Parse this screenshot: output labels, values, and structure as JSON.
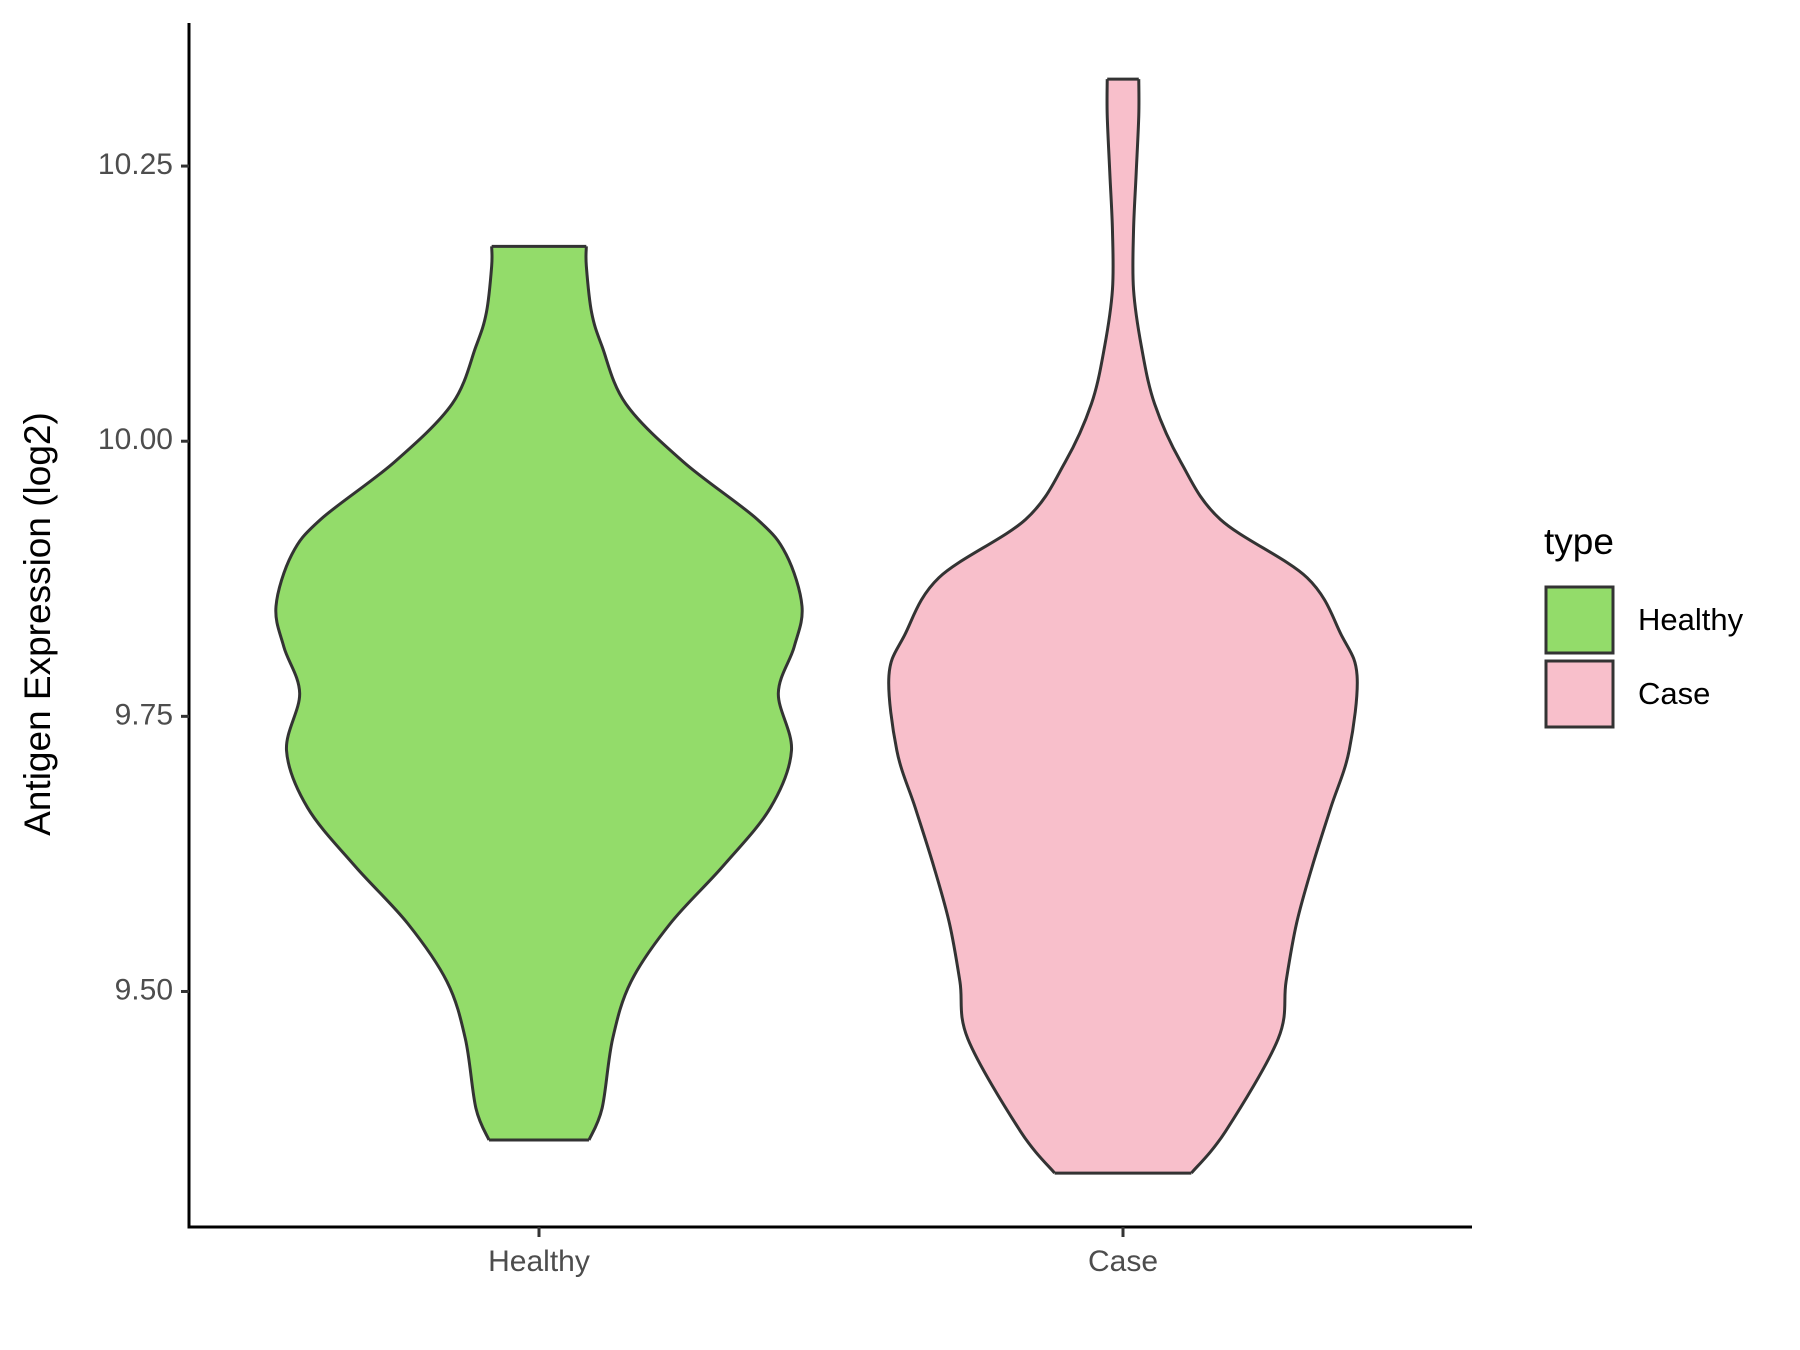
{
  "chart_data": {
    "type": "violin",
    "y_label": "Antigen Expression (log2)",
    "legend_title": "type",
    "categories": [
      "Healthy",
      "Case"
    ],
    "ylim": [
      9.286,
      10.38
    ],
    "yticks": [
      {
        "value": 9.5,
        "label": "9.50"
      },
      {
        "value": 9.75,
        "label": "9.75"
      },
      {
        "value": 10,
        "label": "10.00"
      },
      {
        "value": 10.25,
        "label": "10.25"
      }
    ],
    "series": [
      {
        "name": "Healthy",
        "color": "#93dc6a",
        "y": [
          9.365,
          9.394,
          9.457,
          9.509,
          9.562,
          9.614,
          9.667,
          9.719,
          9.771,
          9.813,
          9.85,
          9.897,
          9.929,
          9.981,
          10.034,
          10.086,
          10.117,
          10.159,
          10.177
        ],
        "density": [
          0.19,
          0.24,
          0.28,
          0.35,
          0.5,
          0.7,
          0.88,
          0.96,
          0.91,
          0.97,
          1.0,
          0.94,
          0.83,
          0.55,
          0.33,
          0.24,
          0.2,
          0.18,
          0.18
        ]
      },
      {
        "name": "Case",
        "color": "#f8bfcb",
        "y": [
          9.335,
          9.373,
          9.457,
          9.509,
          9.562,
          9.614,
          9.667,
          9.719,
          9.787,
          9.824,
          9.876,
          9.929,
          9.981,
          10.034,
          10.086,
          10.138,
          10.191,
          10.243,
          10.296,
          10.329
        ],
        "density": [
          0.26,
          0.39,
          0.59,
          0.62,
          0.66,
          0.72,
          0.79,
          0.86,
          0.89,
          0.83,
          0.7,
          0.37,
          0.22,
          0.12,
          0.07,
          0.04,
          0.04,
          0.05,
          0.06,
          0.06
        ]
      }
    ]
  }
}
